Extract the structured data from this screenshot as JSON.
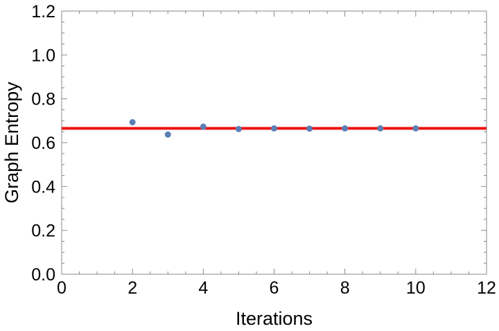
{
  "chart_data": {
    "type": "scatter",
    "title": "",
    "xlabel": "Iterations",
    "ylabel": "Graph Entropy",
    "xlim": [
      0,
      12
    ],
    "ylim": [
      0,
      1.2
    ],
    "x_ticks": [
      0,
      2,
      4,
      6,
      8,
      10,
      12
    ],
    "x_tick_labels": [
      "0",
      "2",
      "4",
      "6",
      "8",
      "10",
      "12"
    ],
    "y_ticks": [
      0,
      0.2,
      0.4,
      0.6,
      0.8,
      1.0,
      1.2
    ],
    "y_tick_labels": [
      "0.0",
      "0.2",
      "0.4",
      "0.6",
      "0.8",
      "1.0",
      "1.2"
    ],
    "grid": false,
    "series": [
      {
        "x": [
          2,
          3,
          4,
          5,
          6,
          7,
          8,
          9,
          10
        ],
        "y": [
          0.693,
          0.637,
          0.673,
          0.662,
          0.665,
          0.664,
          0.665,
          0.665,
          0.665
        ],
        "color": "#5b7fb4"
      }
    ],
    "reference_line": {
      "y": 0.665,
      "color": "#ee1111"
    }
  }
}
